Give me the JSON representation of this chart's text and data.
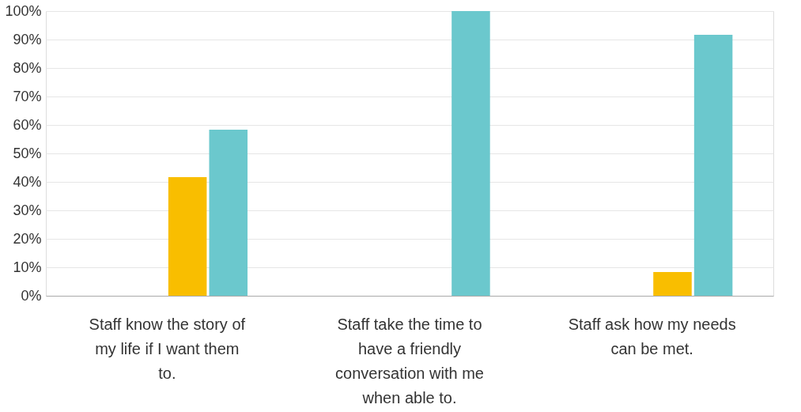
{
  "chart_data": {
    "type": "bar",
    "categories": [
      "Staff know the story of my life if I want them to.",
      "Staff take the time to have a friendly conversation with me when able to.",
      "Staff ask how my needs can be met."
    ],
    "series": [
      {
        "color": "#00bf6f",
        "values": [
          0,
          0,
          0
        ]
      },
      {
        "color": "#507cb6",
        "values": [
          0,
          0,
          0
        ]
      },
      {
        "color": "#f9be00",
        "values": [
          41.7,
          0,
          8.3
        ]
      },
      {
        "color": "#6bc8cd",
        "values": [
          58.3,
          100,
          91.7
        ]
      }
    ],
    "ylim": [
      0,
      100
    ],
    "yticks": [
      {
        "value": 0,
        "label": "0%"
      },
      {
        "value": 10,
        "label": "10%"
      },
      {
        "value": 20,
        "label": "20%"
      },
      {
        "value": 30,
        "label": "30%"
      },
      {
        "value": 40,
        "label": "40%"
      },
      {
        "value": 50,
        "label": "50%"
      },
      {
        "value": 60,
        "label": "60%"
      },
      {
        "value": 70,
        "label": "70%"
      },
      {
        "value": 80,
        "label": "80%"
      },
      {
        "value": 90,
        "label": "90%"
      },
      {
        "value": 100,
        "label": "100%"
      }
    ],
    "grid": "y",
    "legend": false
  }
}
